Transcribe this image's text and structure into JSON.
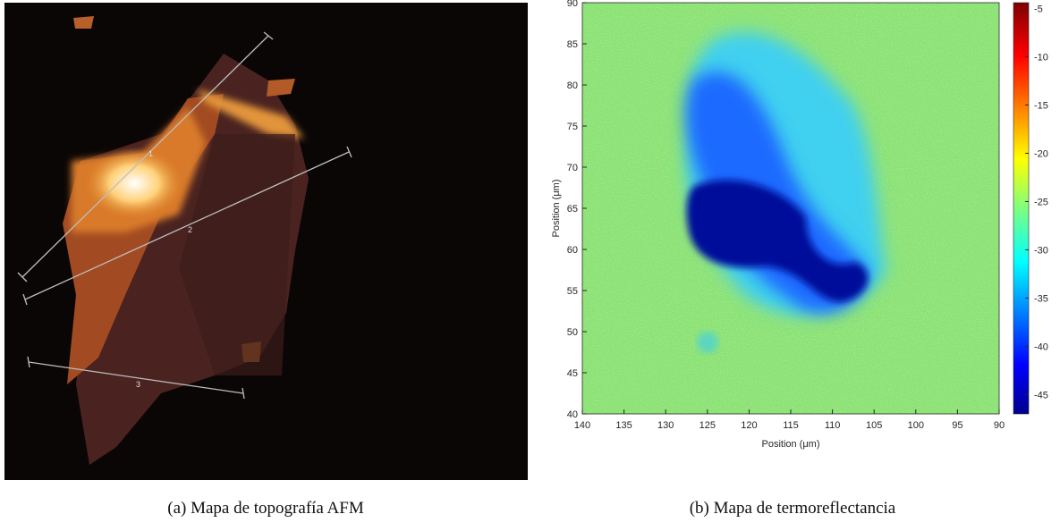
{
  "panels": [
    {
      "caption": "(a) Mapa de topografía AFM",
      "profile_labels": [
        "1",
        "2",
        "3"
      ]
    },
    {
      "caption": "(b) Mapa de termoreflectancia",
      "xlabel": "Position (μm)",
      "ylabel": "Position (μm)",
      "xlim": [
        140,
        90
      ],
      "xticks": [
        140,
        135,
        130,
        125,
        120,
        115,
        110,
        105,
        100,
        95,
        90
      ],
      "ylim": [
        40,
        90
      ],
      "yticks": [
        40,
        45,
        50,
        55,
        60,
        65,
        70,
        75,
        80,
        85,
        90
      ],
      "clim": [
        -47,
        -4.4
      ],
      "cticks": [
        -5,
        -10,
        -15,
        -20,
        -25,
        -30,
        -35,
        -40,
        -45
      ]
    }
  ]
}
